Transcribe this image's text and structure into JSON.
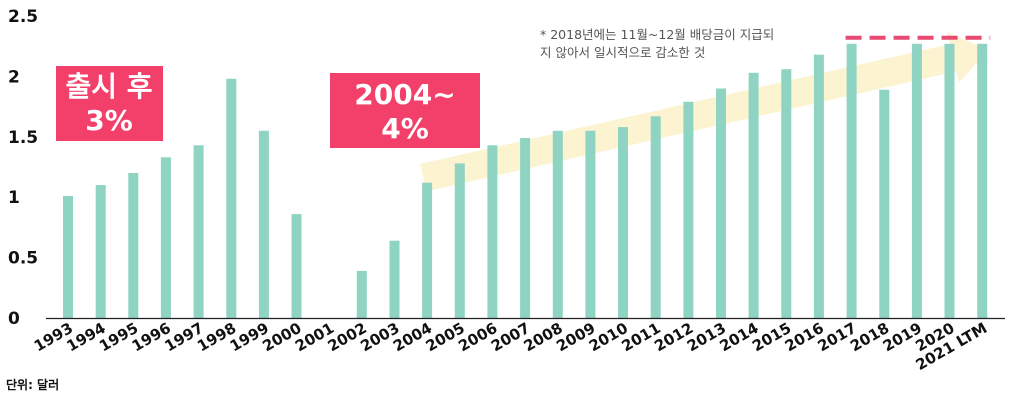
{
  "chart_data": {
    "type": "bar",
    "categories": [
      "1993",
      "1994",
      "1995",
      "1996",
      "1997",
      "1998",
      "1999",
      "2000",
      "2001",
      "2002",
      "2003",
      "2004",
      "2005",
      "2006",
      "2007",
      "2008",
      "2009",
      "2010",
      "2011",
      "2012",
      "2013",
      "2014",
      "2015",
      "2016",
      "2017",
      "2018",
      "2019",
      "2020",
      "2021 LTM"
    ],
    "values": [
      1.01,
      1.1,
      1.2,
      1.33,
      1.43,
      1.98,
      1.55,
      0.86,
      0,
      0.39,
      0.64,
      1.12,
      1.28,
      1.43,
      1.49,
      1.55,
      1.55,
      1.58,
      1.67,
      1.79,
      1.9,
      2.03,
      2.06,
      2.18,
      2.27,
      1.89,
      2.27,
      2.27,
      2.27
    ],
    "yticks": [
      "0",
      "0.5",
      "1",
      "1.5",
      "2",
      "2.5"
    ],
    "ylim": [
      0,
      2.5
    ],
    "bar_color": "#8fd3c2",
    "grid": false,
    "unit_label": "단위: 달러",
    "annotations": {
      "badge1": {
        "line1": "출시 후",
        "line2": "3%",
        "color": "#f2406b"
      },
      "badge2": {
        "line1": "2004~",
        "line2": "4%",
        "color": "#f2406b"
      },
      "note_line1": "* 2018년에는 11월~12월 배당금이 지급되",
      "note_line2": "지 않아서 일시적으로 감소한 것",
      "dashed_line_color": "#e84a72",
      "arrow_color": "#fbf1c9"
    }
  }
}
